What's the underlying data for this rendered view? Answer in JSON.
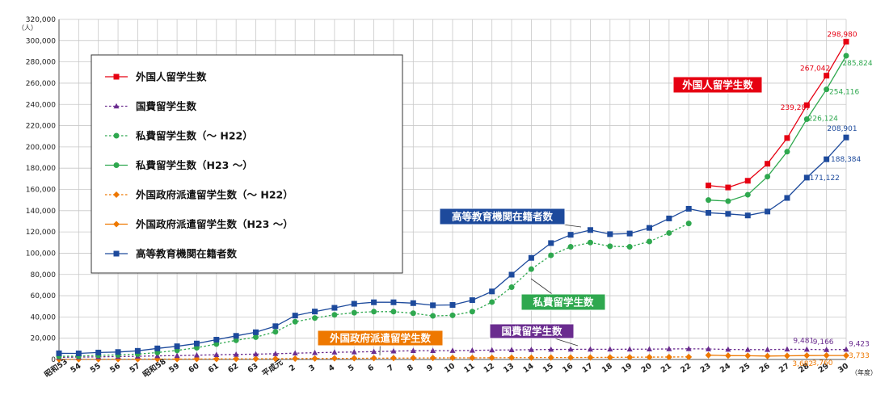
{
  "chart_data": {
    "type": "line",
    "y_unit": "（人）",
    "x_unit": "（年度）",
    "ylim": [
      0,
      320000
    ],
    "y_ticks": [
      "0",
      "20,000",
      "40,000",
      "60,000",
      "80,000",
      "100,000",
      "120,000",
      "140,000",
      "160,000",
      "180,000",
      "200,000",
      "220,000",
      "240,000",
      "260,000",
      "280,000",
      "300,000",
      "320,000"
    ],
    "categories": [
      "昭和53",
      "54",
      "55",
      "56",
      "57",
      "昭和58",
      "59",
      "60",
      "61",
      "62",
      "63",
      "平成元",
      "2",
      "3",
      "4",
      "5",
      "6",
      "7",
      "8",
      "9",
      "10",
      "11",
      "12",
      "13",
      "14",
      "15",
      "16",
      "17",
      "18",
      "19",
      "20",
      "21",
      "22",
      "23",
      "24",
      "25",
      "26",
      "27",
      "28",
      "29",
      "30"
    ],
    "grid": true,
    "legend_placement": "top-left",
    "series": [
      {
        "name": "外国人留学生数",
        "color": "#e60012",
        "style": "solid",
        "marker": "square",
        "values": [
          null,
          null,
          null,
          null,
          null,
          null,
          null,
          null,
          null,
          null,
          null,
          null,
          null,
          null,
          null,
          null,
          null,
          null,
          null,
          null,
          null,
          null,
          null,
          null,
          null,
          null,
          null,
          null,
          null,
          null,
          null,
          null,
          null,
          163697,
          161848,
          168145,
          184155,
          208379,
          239287,
          267042,
          298980
        ]
      },
      {
        "name": "国費留学生数",
        "color": "#6a2c8f",
        "style": "dotted",
        "marker": "triangle",
        "values": [
          2000,
          2200,
          2400,
          2700,
          3000,
          3400,
          3600,
          4000,
          4400,
          4700,
          5000,
          5400,
          5900,
          6300,
          6800,
          7000,
          7400,
          7800,
          8200,
          8250,
          8300,
          8500,
          8800,
          9000,
          9200,
          9400,
          9500,
          9550,
          9600,
          9650,
          9700,
          9900,
          10000,
          9850,
          9400,
          9300,
          9300,
          9600,
          9481,
          9166,
          9423
        ]
      },
      {
        "name": "私費留学生数（～ H22）",
        "color": "#2fa84f",
        "style": "dotted",
        "marker": "circle",
        "values": [
          3000,
          3200,
          3900,
          4300,
          5000,
          6500,
          8500,
          11000,
          14500,
          18000,
          21000,
          26000,
          35500,
          39000,
          42000,
          44000,
          45000,
          45000,
          43500,
          41000,
          41500,
          45000,
          54000,
          68000,
          85000,
          98000,
          106000,
          110000,
          106500,
          106000,
          111000,
          119000,
          128000,
          null,
          null,
          null,
          null,
          null,
          null,
          null,
          null
        ]
      },
      {
        "name": "私費留学生数（H23 ～）",
        "color": "#2fa84f",
        "style": "solid",
        "marker": "circle",
        "values": [
          null,
          null,
          null,
          null,
          null,
          null,
          null,
          null,
          null,
          null,
          null,
          null,
          null,
          null,
          null,
          null,
          null,
          null,
          null,
          null,
          null,
          null,
          null,
          null,
          null,
          null,
          null,
          null,
          null,
          null,
          null,
          null,
          null,
          150000,
          149000,
          155000,
          172000,
          195500,
          226124,
          254116,
          285824
        ]
      },
      {
        "name": "外国政府派遣留学生数（～ H22）",
        "color": "#ee7800",
        "style": "dotted",
        "marker": "diamond",
        "values": [
          100,
          150,
          200,
          250,
          300,
          350,
          400,
          450,
          500,
          550,
          600,
          700,
          800,
          900,
          1000,
          1100,
          1200,
          1300,
          1400,
          1450,
          1500,
          1550,
          1600,
          1700,
          1750,
          1800,
          1850,
          1900,
          2000,
          2100,
          2200,
          2300,
          2400,
          null,
          null,
          null,
          null,
          null,
          null,
          null,
          null
        ]
      },
      {
        "name": "外国政府派遣留学生数（H23 ～）",
        "color": "#ee7800",
        "style": "solid",
        "marker": "diamond",
        "values": [
          null,
          null,
          null,
          null,
          null,
          null,
          null,
          null,
          null,
          null,
          null,
          null,
          null,
          null,
          null,
          null,
          null,
          null,
          null,
          null,
          null,
          null,
          null,
          null,
          null,
          null,
          null,
          null,
          null,
          null,
          null,
          null,
          null,
          4000,
          3600,
          3500,
          3200,
          3400,
          3682,
          3760,
          3733
        ]
      },
      {
        "name": "高等教育機関在籍者数",
        "color": "#1d4a9c",
        "style": "solid",
        "marker": "square",
        "values": [
          5800,
          5700,
          6500,
          7000,
          8100,
          10400,
          12400,
          15000,
          18600,
          22200,
          25600,
          31300,
          41300,
          45100,
          48600,
          52400,
          53800,
          53800,
          53000,
          51000,
          51300,
          55800,
          64000,
          79800,
          95600,
          109500,
          117300,
          121800,
          117900,
          118500,
          123800,
          132700,
          141800,
          138000,
          137000,
          135500,
          139200,
          152000,
          171122,
          188384,
          208901
        ]
      }
    ],
    "data_labels": [
      {
        "text": "298,980",
        "series": 0,
        "index": 40,
        "color": "#e60012"
      },
      {
        "text": "267,042",
        "series": 0,
        "index": 39,
        "color": "#e60012"
      },
      {
        "text": "239,287",
        "series": 0,
        "index": 38,
        "color": "#e60012"
      },
      {
        "text": "285,824",
        "series": 3,
        "index": 40,
        "color": "#2fa84f"
      },
      {
        "text": "254,116",
        "series": 3,
        "index": 39,
        "color": "#2fa84f"
      },
      {
        "text": "226,124",
        "series": 3,
        "index": 38,
        "color": "#2fa84f"
      },
      {
        "text": "208,901",
        "series": 6,
        "index": 40,
        "color": "#1d4a9c"
      },
      {
        "text": "188,384",
        "series": 6,
        "index": 39,
        "color": "#1d4a9c"
      },
      {
        "text": "171,122",
        "series": 6,
        "index": 38,
        "color": "#1d4a9c"
      },
      {
        "text": "9,481",
        "series": 1,
        "index": 38,
        "color": "#6a2c8f"
      },
      {
        "text": "9,166",
        "series": 1,
        "index": 39,
        "color": "#6a2c8f"
      },
      {
        "text": "9,423",
        "series": 1,
        "index": 40,
        "color": "#6a2c8f"
      },
      {
        "text": "3,682",
        "series": 5,
        "index": 38,
        "color": "#ee7800"
      },
      {
        "text": "3,760",
        "series": 5,
        "index": 39,
        "color": "#ee7800"
      },
      {
        "text": "3,733",
        "series": 5,
        "index": 40,
        "color": "#ee7800"
      }
    ],
    "callouts": [
      {
        "text": "外国人留学生数",
        "bg": "#e60012"
      },
      {
        "text": "高等教育機関在籍者数",
        "bg": "#1d4a9c"
      },
      {
        "text": "私費留学生数",
        "bg": "#2fa84f"
      },
      {
        "text": "外国政府派遣留学生数",
        "bg": "#ee7800"
      },
      {
        "text": "国費留学生数",
        "bg": "#6a2c8f"
      }
    ]
  }
}
